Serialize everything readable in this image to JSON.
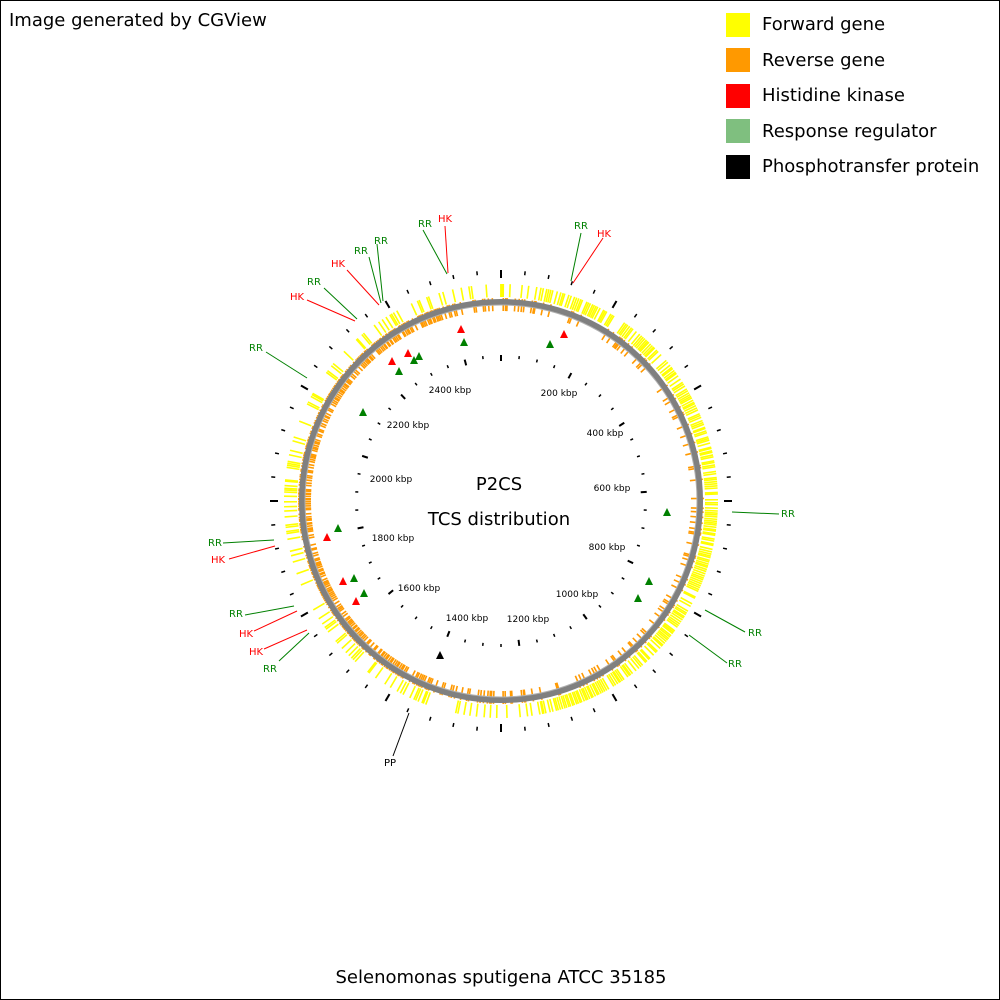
{
  "credit": "Image generated by CGView",
  "footer_title": "Selenomonas sputigena ATCC 35185",
  "center": {
    "line1": "P2CS",
    "line2": "TCS distribution"
  },
  "legend": [
    {
      "label": "Forward gene",
      "color": "#ffff00"
    },
    {
      "label": "Reverse gene",
      "color": "#ff9900"
    },
    {
      "label": "Histidine kinase",
      "color": "#ff0000"
    },
    {
      "label": "Response regulator",
      "color": "#7fbf7f"
    },
    {
      "label": "Phosphotransfer protein",
      "color": "#000000"
    }
  ],
  "colors": {
    "forward": "#ffff00",
    "reverse": "#ff9900",
    "backbone": "#808080",
    "hk": "#ff0000",
    "rr": "#008000",
    "pp": "#000000"
  },
  "scale_labels": [
    "200 kbp",
    "400 kbp",
    "600 kbp",
    "800 kbp",
    "1000 kbp",
    "1200 kbp",
    "1400 kbp",
    "1600 kbp",
    "1800 kbp",
    "2000 kbp",
    "2200 kbp",
    "2400 kbp"
  ],
  "feature_labels": [
    {
      "text": "RR",
      "type": "RR"
    },
    {
      "text": "HK",
      "type": "HK"
    },
    {
      "text": "RR",
      "type": "RR"
    },
    {
      "text": "HK",
      "type": "HK"
    },
    {
      "text": "RR",
      "type": "RR"
    },
    {
      "text": "RR",
      "type": "RR"
    },
    {
      "text": "RR",
      "type": "RR"
    },
    {
      "text": "RR",
      "type": "RR"
    },
    {
      "text": "RR",
      "type": "RR"
    },
    {
      "text": "HK",
      "type": "HK"
    },
    {
      "text": "RR",
      "type": "RR"
    },
    {
      "text": "HK",
      "type": "HK"
    },
    {
      "text": "RR",
      "type": "RR"
    },
    {
      "text": "RR",
      "type": "RR"
    },
    {
      "text": "HK",
      "type": "HK"
    },
    {
      "text": "HK",
      "type": "HK"
    },
    {
      "text": "RR",
      "type": "RR"
    },
    {
      "text": "RR",
      "type": "RR"
    },
    {
      "text": "PP",
      "type": "PP"
    }
  ]
}
